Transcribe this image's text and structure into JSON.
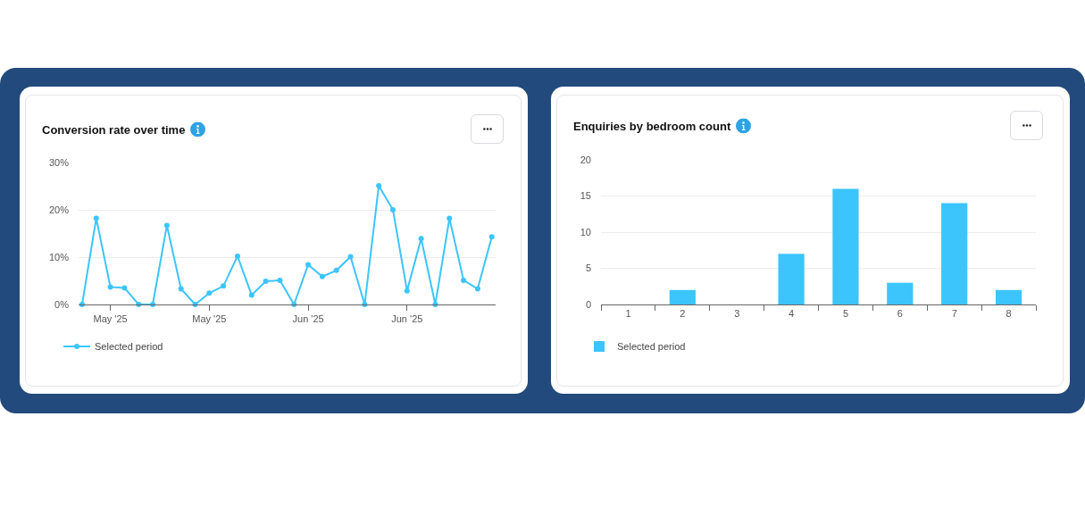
{
  "chart_data": [
    {
      "type": "line",
      "title": "Conversion rate over time",
      "categories": [
        null,
        null,
        "May '25",
        null,
        null,
        null,
        null,
        null,
        null,
        "May '25",
        null,
        null,
        null,
        null,
        null,
        null,
        "Jun '25",
        null,
        null,
        null,
        null,
        null,
        null,
        "Jun '25",
        null,
        null,
        null,
        null,
        null,
        null
      ],
      "series": [
        {
          "name": "Selected period",
          "color": "#3cc5fd",
          "values": [
            0,
            18.2,
            3.7,
            3.5,
            0,
            0,
            16.7,
            3.3,
            0,
            2.4,
            3.9,
            10.2,
            2.0,
            4.9,
            5.1,
            0,
            8.4,
            5.9,
            7.2,
            10.1,
            0,
            25.1,
            20.0,
            2.9,
            13.9,
            0,
            18.2,
            5.1,
            3.3,
            14.3
          ]
        }
      ],
      "ylim": [
        0,
        30
      ],
      "yticks": [
        {
          "value": 0,
          "label": "0%"
        },
        {
          "value": 10,
          "label": "10%"
        },
        {
          "value": 20,
          "label": "20%"
        },
        {
          "value": 30,
          "label": "30%"
        }
      ],
      "grid": "y",
      "legend": "bottom left",
      "marker": "circle",
      "line_style": "solid"
    },
    {
      "type": "bar",
      "title": "Enquiries by bedroom count",
      "categories": [
        "1",
        "2",
        "3",
        "4",
        "5",
        "6",
        "7",
        "8"
      ],
      "series": [
        {
          "name": "Selected period",
          "color": "#3cc5fd",
          "values": [
            0,
            2,
            0,
            7,
            16,
            3,
            14,
            2
          ]
        }
      ],
      "ylim": [
        0,
        20
      ],
      "yticks": [
        0,
        5,
        10,
        15,
        20
      ],
      "grid": "y",
      "legend": "bottom left"
    }
  ]
}
